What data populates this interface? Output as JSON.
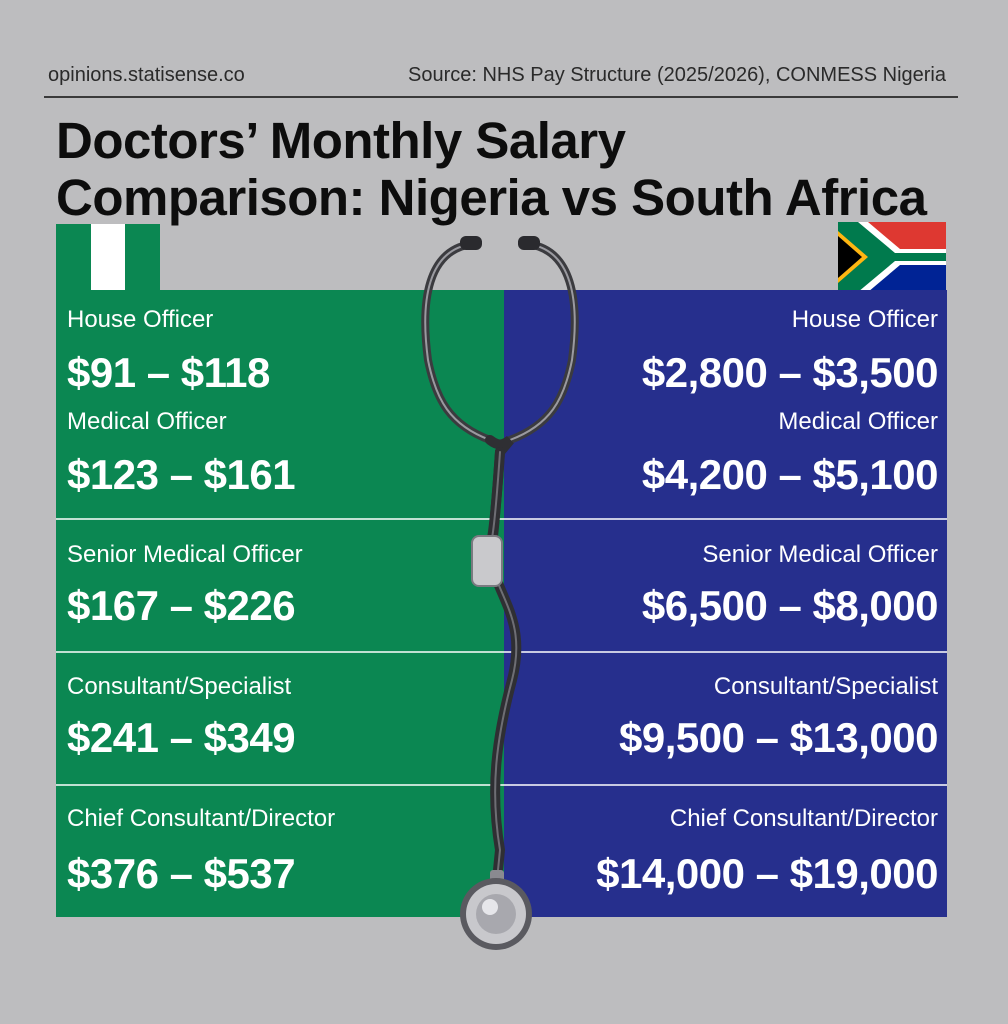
{
  "header": {
    "site": "opinions.statisense.co",
    "source": "Source: NHS Pay Structure (2025/2026), CONMESS Nigeria"
  },
  "title": {
    "line1": "Doctors’ Monthly Salary",
    "line2": "Comparison: Nigeria vs South Africa"
  },
  "colors": {
    "background": "#bdbdbf",
    "nigeria_panel": "#0b8752",
    "south_africa_panel": "#262f8d",
    "text": "#ffffff"
  },
  "icons": {
    "nigeria_flag": "nigeria-flag-icon",
    "south_africa_flag": "south-africa-flag-icon",
    "stethoscope": "stethoscope-icon"
  },
  "nigeria": {
    "rows": [
      {
        "role": "House Officer",
        "range": "$91 – $118"
      },
      {
        "role": "Medical Officer",
        "range": "$123 – $161"
      },
      {
        "role": "Senior Medical Officer",
        "range": "$167 – $226"
      },
      {
        "role": "Consultant/Specialist",
        "range": "$241 – $349"
      },
      {
        "role": "Chief Consultant/Director",
        "range": "$376 – $537"
      }
    ]
  },
  "south_africa": {
    "rows": [
      {
        "role": "House Officer",
        "range": "$2,800 – $3,500"
      },
      {
        "role": "Medical Officer",
        "range": "$4,200 – $5,100"
      },
      {
        "role": "Senior Medical Officer",
        "range": "$6,500 – $8,000"
      },
      {
        "role": "Consultant/Specialist",
        "range": "$9,500 – $13,000"
      },
      {
        "role": "Chief Consultant/Director",
        "range": "$14,000 – $19,000"
      }
    ]
  }
}
